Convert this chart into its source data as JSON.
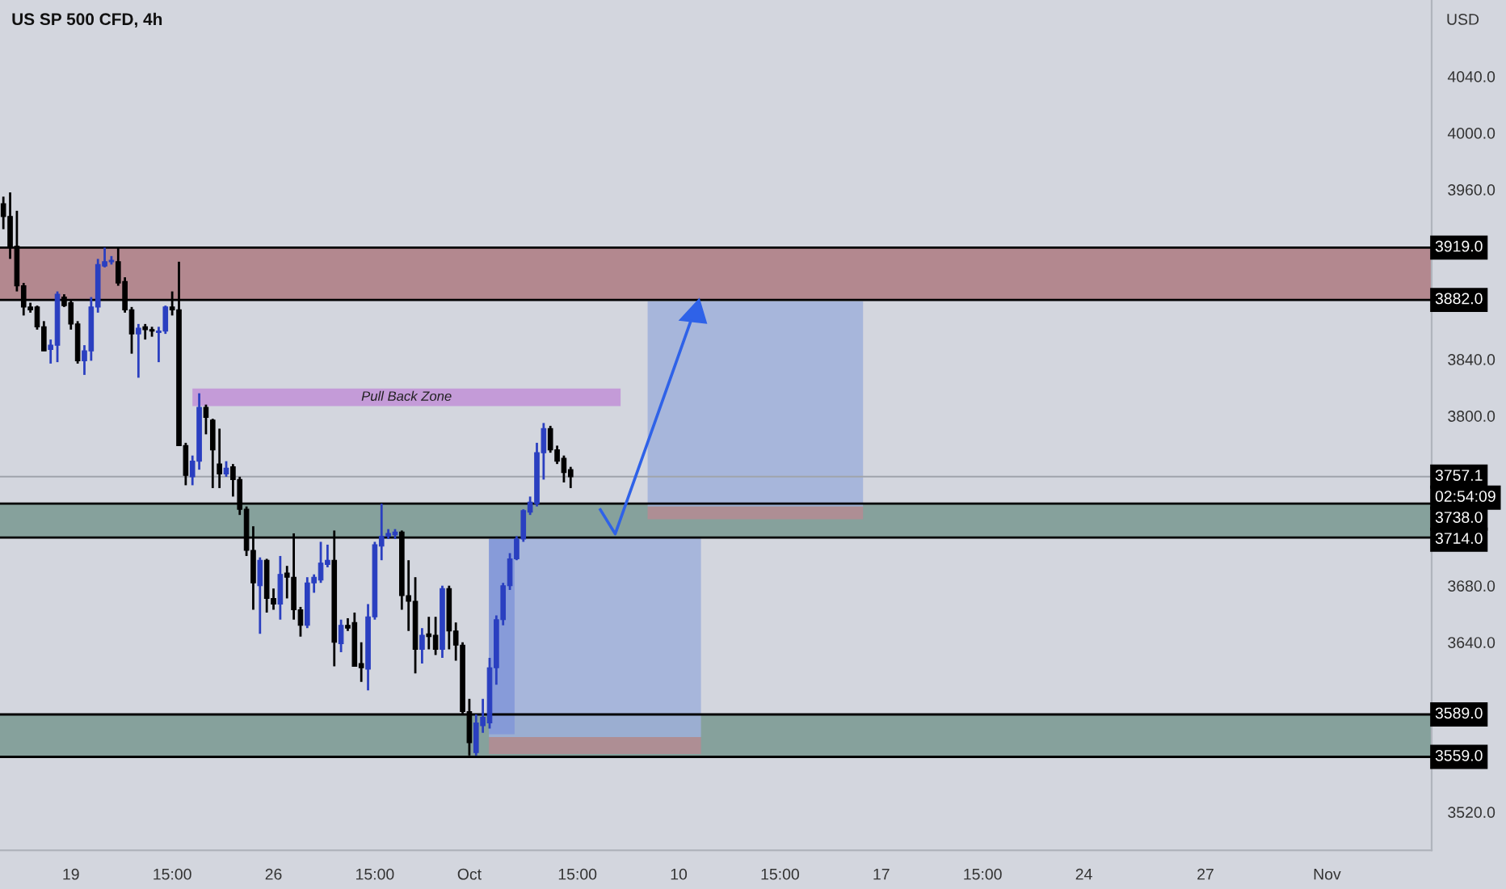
{
  "chart_data": {
    "type": "candlestick",
    "title": "US SP 500 CFD, 4h",
    "ylabel": "USD",
    "categories": [
      null,
      null,
      null,
      null,
      null,
      null,
      null,
      null,
      null,
      null,
      "19",
      null,
      null,
      null,
      null,
      null,
      null,
      null,
      null,
      null,
      null,
      null,
      null,
      null,
      null,
      "15:00",
      null,
      null,
      null,
      null,
      null,
      null,
      null,
      null,
      null,
      null,
      null,
      null,
      null,
      null,
      "26",
      null,
      null,
      null,
      null,
      null,
      null,
      null,
      null,
      null,
      null,
      null,
      null,
      null,
      null,
      "15:00",
      null,
      null,
      null,
      null,
      null,
      null,
      null,
      null,
      null,
      null,
      null,
      null,
      null,
      "Oct",
      null,
      null,
      null,
      null,
      null,
      null,
      null,
      null,
      null,
      null,
      null,
      null,
      null,
      null,
      null,
      "15:00",
      null,
      null,
      null,
      null,
      null,
      null,
      null,
      null,
      null,
      null,
      null,
      null,
      null,
      null,
      "10",
      null,
      null,
      null,
      null,
      null,
      null,
      null,
      null,
      null,
      null,
      null,
      null,
      null,
      null,
      "15:00",
      null,
      null,
      null,
      null,
      null,
      null,
      null,
      null,
      null,
      null,
      null,
      null,
      null,
      null,
      "17",
      null,
      null,
      null,
      null,
      null,
      null,
      null,
      null,
      null,
      null,
      null,
      null,
      null,
      null,
      "15:00",
      null,
      null,
      null,
      null,
      null,
      null,
      null,
      null,
      null,
      null,
      null,
      null,
      null,
      null,
      "24",
      null,
      null,
      null,
      null,
      null,
      null,
      null,
      null,
      null,
      null,
      null,
      null,
      null,
      null,
      null,
      null,
      null,
      "27",
      null,
      null,
      null,
      null,
      null,
      null,
      null,
      null,
      null,
      null,
      null,
      null,
      null,
      null,
      null,
      null,
      null,
      "Nov",
      null,
      null,
      null,
      null,
      null,
      null,
      null,
      null,
      null,
      null,
      null,
      null,
      null,
      null,
      null
    ],
    "ohlc": [
      [
        3950,
        3955,
        3932,
        3941
      ],
      [
        3941,
        3958,
        3911,
        3920
      ],
      [
        3920,
        3945,
        3888,
        3892
      ],
      [
        3892,
        3894,
        3871,
        3877
      ],
      [
        3877,
        3880,
        3873,
        3875
      ],
      [
        3877,
        3878,
        3861,
        3863
      ],
      [
        3863,
        3867,
        3846,
        3846
      ],
      [
        3847,
        3854,
        3837,
        3850
      ],
      [
        3850,
        3888,
        3838,
        3886
      ],
      [
        3884,
        3886,
        3877,
        3878
      ],
      [
        3880,
        3882,
        3861,
        3865
      ],
      [
        3865,
        3867,
        3837,
        3839
      ],
      [
        3839,
        3850,
        3829,
        3846
      ],
      [
        3846,
        3884,
        3839,
        3877
      ],
      [
        3877,
        3911,
        3873,
        3907
      ],
      [
        3906,
        3919,
        3905,
        3909
      ],
      [
        3909,
        3913,
        3907,
        3910
      ],
      [
        3909,
        3919,
        3892,
        3894
      ],
      [
        3895,
        3898,
        3873,
        3875
      ],
      [
        3875,
        3877,
        3844,
        3858
      ],
      [
        3858,
        3865,
        3827,
        3862
      ],
      [
        3863,
        3865,
        3854,
        3861
      ],
      [
        3861,
        3863,
        3856,
        3860
      ],
      [
        3859,
        3863,
        3838,
        3860
      ],
      [
        3860,
        3878,
        3858,
        3877
      ],
      [
        3877,
        3888,
        3871,
        3875
      ],
      [
        3875,
        3909,
        3779,
        3779
      ],
      [
        3779,
        3781,
        3751,
        3758
      ],
      [
        3757,
        3772,
        3751,
        3768
      ],
      [
        3768,
        3816,
        3762,
        3806
      ],
      [
        3806,
        3808,
        3787,
        3799
      ],
      [
        3797,
        3798,
        3749,
        3776
      ],
      [
        3766,
        3791,
        3749,
        3759
      ],
      [
        3759,
        3768,
        3757,
        3763
      ],
      [
        3764,
        3766,
        3743,
        3755
      ],
      [
        3755,
        3757,
        3730,
        3734
      ],
      [
        3734,
        3736,
        3701,
        3705
      ],
      [
        3705,
        3722,
        3663,
        3682
      ],
      [
        3680,
        3700,
        3646,
        3698
      ],
      [
        3698,
        3699,
        3661,
        3671
      ],
      [
        3671,
        3678,
        3663,
        3667
      ],
      [
        3667,
        3701,
        3656,
        3688
      ],
      [
        3689,
        3694,
        3671,
        3686
      ],
      [
        3686,
        3717,
        3656,
        3663
      ],
      [
        3663,
        3665,
        3644,
        3652
      ],
      [
        3652,
        3686,
        3650,
        3682
      ],
      [
        3682,
        3688,
        3675,
        3686
      ],
      [
        3684,
        3711,
        3682,
        3696
      ],
      [
        3695,
        3709,
        3693,
        3698
      ],
      [
        3698,
        3719,
        3623,
        3640
      ],
      [
        3639,
        3656,
        3633,
        3652
      ],
      [
        3652,
        3657,
        3648,
        3650
      ],
      [
        3654,
        3661,
        3623,
        3623
      ],
      [
        3625,
        3640,
        3612,
        3622
      ],
      [
        3621,
        3667,
        3606,
        3658
      ],
      [
        3658,
        3711,
        3656,
        3709
      ],
      [
        3708,
        3738,
        3698,
        3715
      ],
      [
        3715,
        3720,
        3713,
        3717
      ],
      [
        3716,
        3720,
        3713,
        3718
      ],
      [
        3718,
        3719,
        3663,
        3673
      ],
      [
        3673,
        3698,
        3648,
        3669
      ],
      [
        3669,
        3686,
        3618,
        3635
      ],
      [
        3635,
        3650,
        3625,
        3645
      ],
      [
        3646,
        3658,
        3635,
        3644
      ],
      [
        3645,
        3658,
        3631,
        3635
      ],
      [
        3635,
        3680,
        3629,
        3678
      ],
      [
        3678,
        3680,
        3635,
        3648
      ],
      [
        3648,
        3654,
        3627,
        3638
      ],
      [
        3638,
        3640,
        3589,
        3591
      ],
      [
        3591,
        3600,
        3560,
        3569
      ],
      [
        3562,
        3589,
        3560,
        3583
      ],
      [
        3581,
        3600,
        3576,
        3587
      ],
      [
        3583,
        3629,
        3579,
        3622
      ],
      [
        3622,
        3659,
        3610,
        3656
      ],
      [
        3656,
        3682,
        3652,
        3680
      ],
      [
        3680,
        3703,
        3677,
        3699
      ],
      [
        3699,
        3715,
        3698,
        3713
      ],
      [
        3713,
        3734,
        3711,
        3733
      ],
      [
        3732,
        3743,
        3730,
        3739
      ],
      [
        3738,
        3781,
        3736,
        3774
      ],
      [
        3774,
        3795,
        3755,
        3791
      ],
      [
        3791,
        3793,
        3774,
        3776
      ],
      [
        3776,
        3779,
        3766,
        3768
      ],
      [
        3770,
        3772,
        3753,
        3760
      ],
      [
        3762,
        3764,
        3749,
        3757
      ],
      null,
      null,
      null,
      null,
      null,
      null,
      null,
      null,
      null,
      null,
      null,
      null,
      null,
      null,
      null,
      null,
      null,
      null,
      null,
      null,
      null,
      null,
      null,
      null,
      null,
      null,
      null,
      null,
      null,
      null,
      null,
      null,
      null,
      null,
      null,
      null,
      null,
      null,
      null,
      null,
      null,
      null,
      null,
      null,
      null,
      null,
      null,
      null,
      null,
      null,
      null,
      null,
      null,
      null,
      null,
      null,
      null,
      null,
      null,
      null,
      null,
      null,
      null,
      null,
      null,
      null,
      null,
      null,
      null,
      null,
      null,
      null,
      null,
      null,
      null,
      null,
      null,
      null,
      null,
      null,
      null,
      null,
      null,
      null,
      null,
      null,
      null,
      null,
      null,
      null,
      null,
      null,
      null,
      null,
      null,
      null,
      null,
      null,
      null,
      null,
      null,
      null,
      null,
      null,
      null,
      null,
      null,
      null,
      null,
      null,
      null,
      null,
      null,
      null,
      null,
      null,
      null,
      null,
      null,
      null,
      null,
      null,
      null,
      null,
      null,
      null,
      null
    ],
    "ylim": [
      3493,
      4094
    ],
    "yticks": [
      {
        "value": 3520,
        "label": "3520.0"
      },
      {
        "value": 3640,
        "label": "3640.0"
      },
      {
        "value": 3680,
        "label": "3680.0"
      },
      {
        "value": 3800,
        "label": "3800.0"
      },
      {
        "value": 3840,
        "label": "3840.0"
      },
      {
        "value": 3960,
        "label": "3960.0"
      },
      {
        "value": 4000,
        "label": "4000.0"
      },
      {
        "value": 4040,
        "label": "4040.0"
      }
    ],
    "bands": [
      {
        "axis": "y",
        "from": 3882,
        "to": 3919,
        "color": "#b3888f"
      },
      {
        "axis": "y",
        "from": 3714,
        "to": 3738,
        "color": "#86a19c"
      },
      {
        "axis": "y",
        "from": 3559,
        "to": 3589,
        "color": "#86a19c"
      }
    ],
    "ref_lines": [
      {
        "axis": "y",
        "value": 3757.1,
        "label": "3757.1",
        "color": "#a0a4ac"
      },
      {
        "axis": "y",
        "value": 3919,
        "label": "3919.0",
        "color": "#000000"
      },
      {
        "axis": "y",
        "value": 3882,
        "label": "3882.0",
        "color": "#000000"
      },
      {
        "axis": "y",
        "value": 3738,
        "label": "3738.0",
        "color": "#000000"
      },
      {
        "axis": "y",
        "value": 3714,
        "label": "3714.0",
        "color": "#000000"
      },
      {
        "axis": "y",
        "value": 3589,
        "label": "3589.0",
        "color": "#000000"
      },
      {
        "axis": "y",
        "value": 3559,
        "label": "3559.0",
        "color": "#000000"
      }
    ],
    "annotations": [
      "02:54:09",
      "Pull Back Zone"
    ],
    "grid": false
  }
}
